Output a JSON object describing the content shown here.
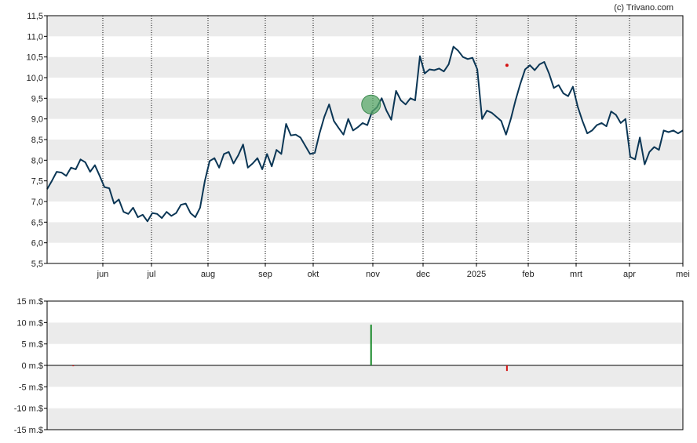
{
  "copyright": "(c) Trivano.com",
  "colors": {
    "band": "#ebebeb",
    "line": "#0b3655",
    "marker_green": "#5aa86a",
    "bar_green": "#1a8a2a",
    "bar_red": "#d41010",
    "grid": "#000000"
  },
  "chart_data": [
    {
      "type": "line",
      "title": "",
      "ylabel": "",
      "ylim": [
        5.5,
        11.5
      ],
      "y_ticks": [
        "5,5",
        "6,0",
        "6,5",
        "7,0",
        "7,5",
        "8,0",
        "8,5",
        "9,0",
        "9,5",
        "10,0",
        "10,5",
        "11,0",
        "11,5"
      ],
      "x_ticks": [
        "jun",
        "jul",
        "aug",
        "sep",
        "okt",
        "nov",
        "dec",
        "2025",
        "feb",
        "mrt",
        "apr",
        "mei"
      ],
      "grid": "vertical dotted at month starts, horizontal alternating bands",
      "series": [
        {
          "values": [
            7.3,
            7.5,
            7.72,
            7.7,
            7.62,
            7.82,
            7.78,
            8.02,
            7.95,
            7.72,
            7.88,
            7.62,
            7.35,
            7.32,
            6.95,
            7.05,
            6.75,
            6.7,
            6.85,
            6.62,
            6.68,
            6.52,
            6.72,
            6.7,
            6.6,
            6.75,
            6.65,
            6.72,
            6.92,
            6.95,
            6.72,
            6.62,
            6.85,
            7.5,
            7.98,
            8.05,
            7.82,
            8.15,
            8.2,
            7.92,
            8.12,
            8.38,
            7.82,
            7.92,
            8.05,
            7.78,
            8.15,
            7.85,
            8.25,
            8.15,
            8.88,
            8.6,
            8.62,
            8.55,
            8.35,
            8.15,
            8.18,
            8.65,
            9.05,
            9.35,
            8.95,
            8.78,
            8.62,
            9.0,
            8.72,
            8.8,
            8.9,
            8.85,
            9.18,
            9.28,
            9.5,
            9.2,
            8.98,
            9.68,
            9.45,
            9.35,
            9.5,
            9.45,
            10.52,
            10.1,
            10.2,
            10.18,
            10.22,
            10.15,
            10.32,
            10.75,
            10.65,
            10.5,
            10.45,
            10.48,
            10.2,
            9.0,
            9.2,
            9.15,
            9.05,
            8.95,
            8.62,
            9.0,
            9.45,
            9.85,
            10.2,
            10.3,
            10.18,
            10.32,
            10.38,
            10.1,
            9.75,
            9.82,
            9.62,
            9.55,
            9.78,
            9.3,
            8.95,
            8.65,
            8.72,
            8.85,
            8.9,
            8.82,
            9.18,
            9.1,
            8.9,
            9.0,
            8.08,
            8.02,
            8.55,
            7.9,
            8.2,
            8.32,
            8.25,
            8.72,
            8.68,
            8.72,
            8.65,
            8.72
          ],
          "x_start": "2024-05-07",
          "x_end": "2025-05-07"
        }
      ],
      "markers": [
        {
          "label": "buy",
          "x": "2024-11-09",
          "y": 9.35,
          "color": "#5aa86a"
        },
        {
          "label": "sell",
          "x": "2025-01-26",
          "y": 10.3,
          "color": "#d41010"
        }
      ]
    },
    {
      "type": "bar",
      "title": "",
      "ylabel": "",
      "ylim": [
        -15,
        15
      ],
      "y_ticks": [
        "15 m.$",
        "10 m.$",
        "5 m.$",
        "0 m.$",
        "-5 m.$",
        "-10 m.$",
        "-15 m.$"
      ],
      "series": [
        {
          "values": [
            {
              "x": "2024-05-22",
              "y": -0.2,
              "color": "#d41010"
            },
            {
              "x": "2024-11-09",
              "y": 9.5,
              "color": "#1a8a2a"
            },
            {
              "x": "2025-01-26",
              "y": -1.3,
              "color": "#d41010"
            }
          ]
        }
      ]
    }
  ]
}
